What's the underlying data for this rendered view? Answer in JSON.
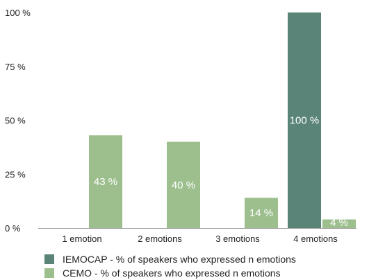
{
  "chart_data": {
    "type": "bar",
    "categories": [
      "1 emotion",
      "2 emotions",
      "3 emotions",
      "4 emotions"
    ],
    "series": [
      {
        "name": "IEMOCAP - % of speakers who expressed n emotions",
        "color": "#5a8478",
        "values": [
          0,
          0,
          0,
          100
        ],
        "labels": [
          "",
          "",
          "",
          "100 %"
        ]
      },
      {
        "name": "CEMO - % of speakers who expressed n emotions",
        "color": "#9dbf8e",
        "values": [
          43,
          40,
          14,
          4
        ],
        "labels": [
          "43 %",
          "40 %",
          "14 %",
          "4 %"
        ]
      }
    ],
    "ylim": [
      0,
      100
    ],
    "yticks": [
      {
        "value": 0,
        "label": "0 %"
      },
      {
        "value": 25,
        "label": "25 %"
      },
      {
        "value": 50,
        "label": "50 %"
      },
      {
        "value": 75,
        "label": "75 %"
      },
      {
        "value": 100,
        "label": "100 %"
      }
    ],
    "grid": false,
    "legend_position": "bottom-left"
  }
}
